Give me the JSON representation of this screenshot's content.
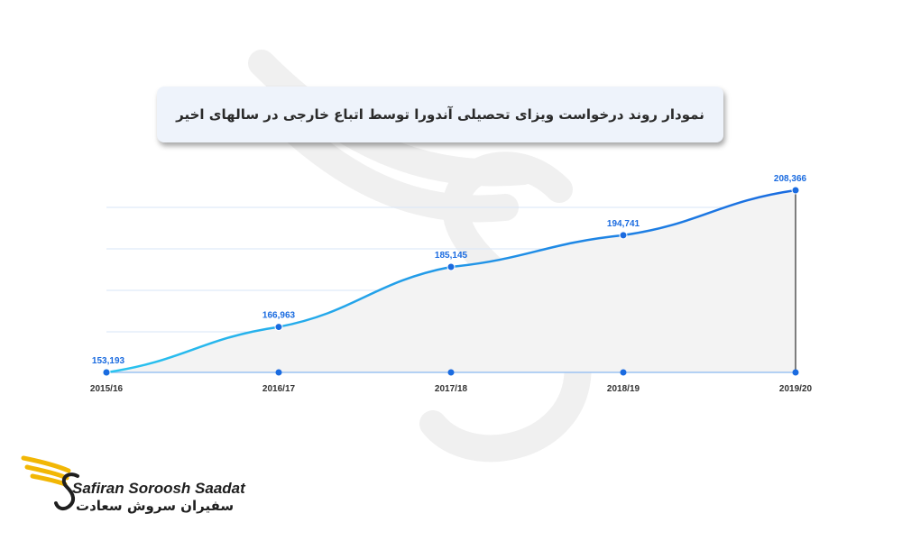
{
  "chart_data": {
    "type": "area",
    "title": "نمودار روند درخواست ویزای تحصیلی آندورا توسط اتباع خارجی در سالهای اخیر",
    "categories": [
      "2015/16",
      "2016/17",
      "2017/18",
      "2018/19",
      "2019/20"
    ],
    "series": [
      {
        "values": [
          153193,
          166963,
          185145,
          194741,
          208366
        ]
      }
    ],
    "data_labels": [
      "153,193",
      "166,963",
      "185,145",
      "194,741",
      "208,366"
    ],
    "ylim": [
      153193,
      208366
    ],
    "grid": true,
    "colors": {
      "line_start": "#29c4ef",
      "line_end": "#1a6be0",
      "fill": "#f3f3f3",
      "grid": "#d7e6f7",
      "label": "#1a6be0"
    }
  },
  "logo": {
    "name_en": "Safiran Soroosh Saadat",
    "name_fa": "سفیران سروش سعادت"
  }
}
